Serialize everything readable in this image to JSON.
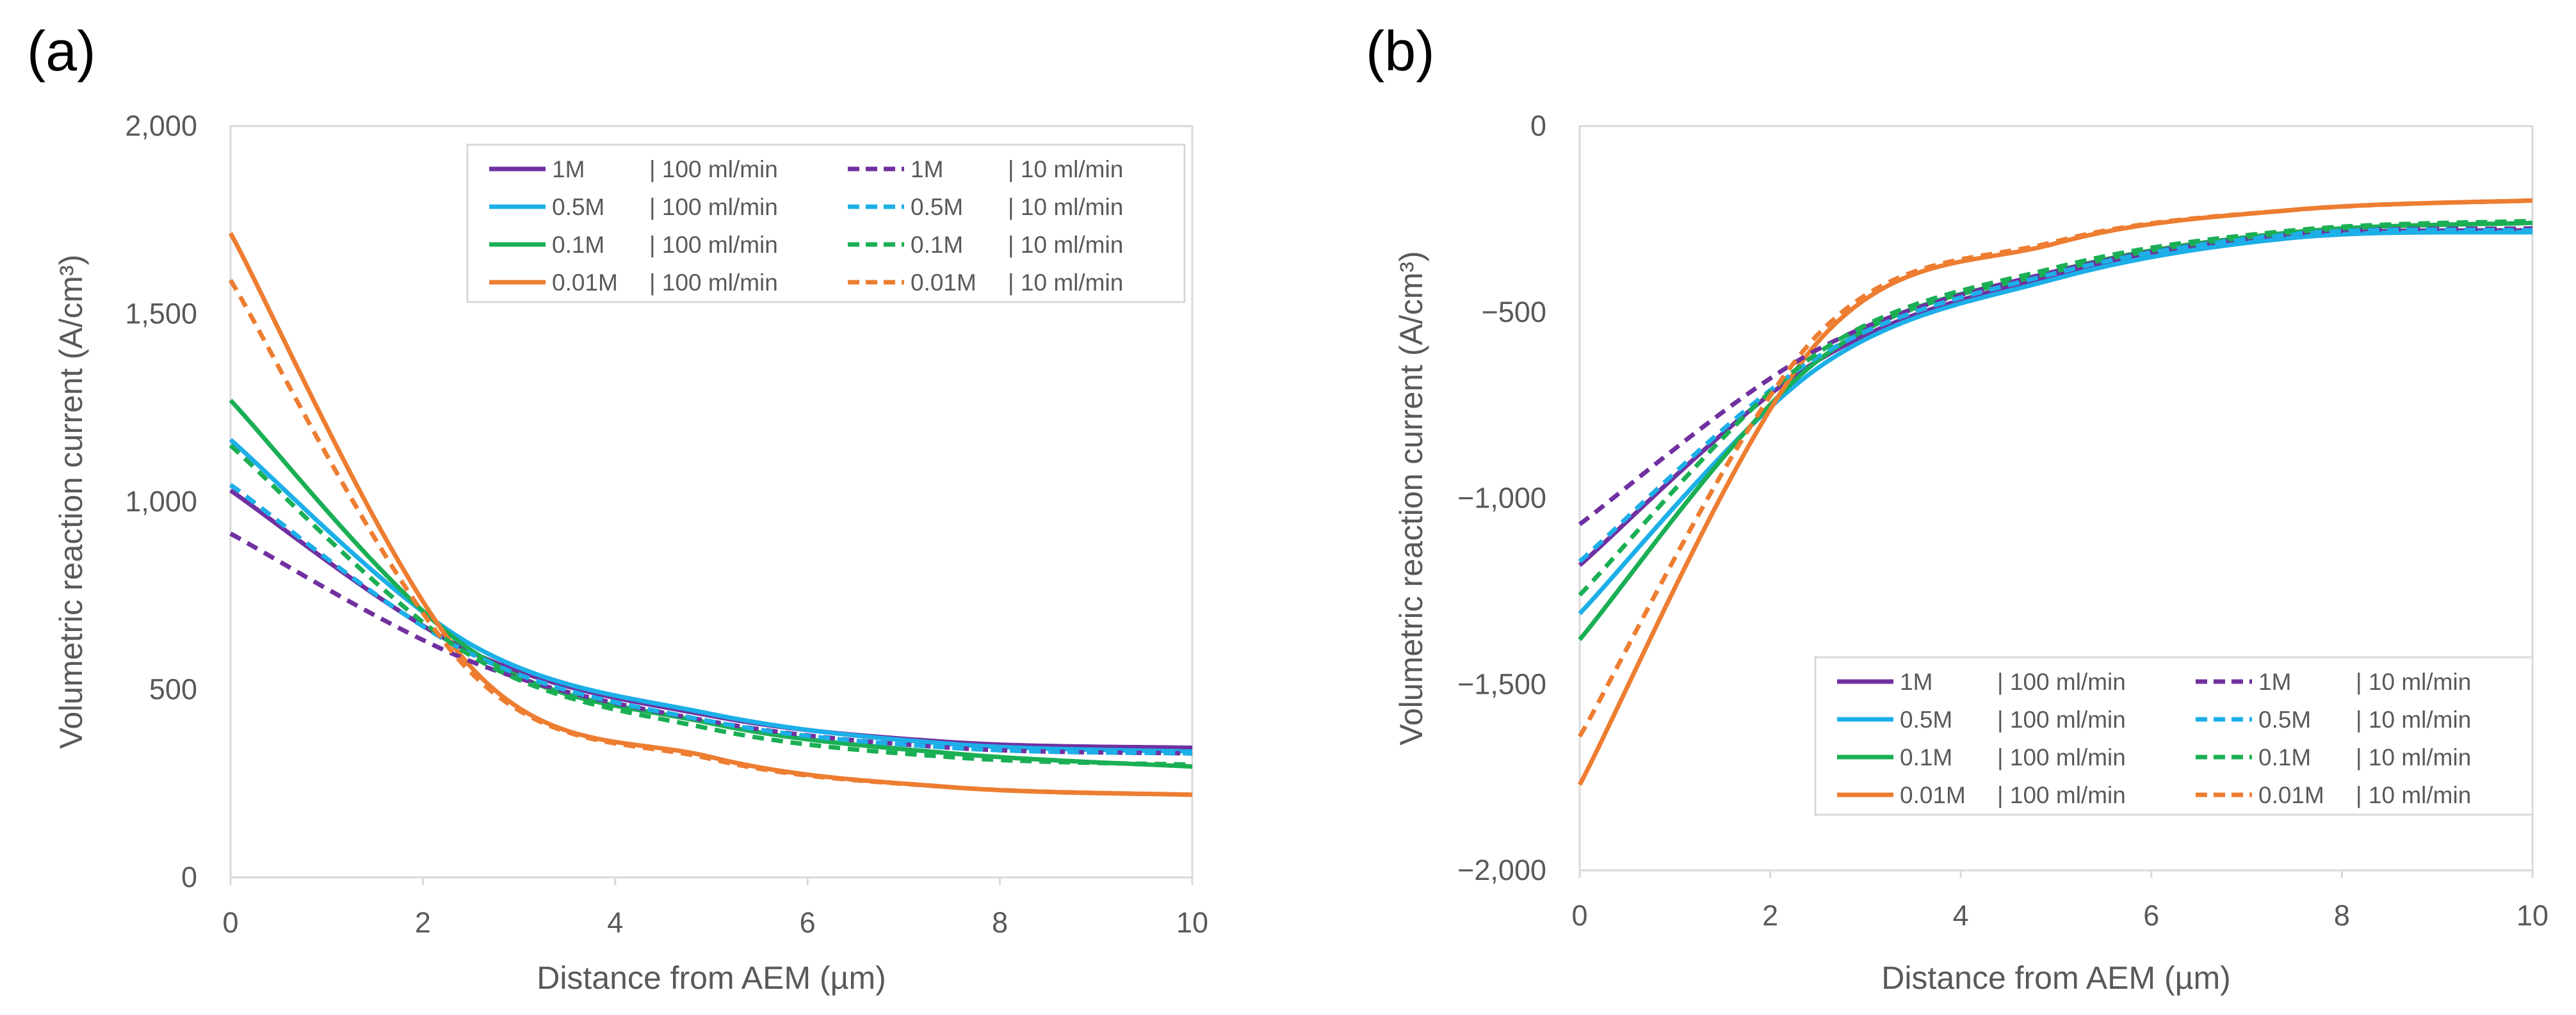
{
  "series_styles": [
    {
      "key": "1M_100",
      "color": "#7030A0",
      "dash": false
    },
    {
      "key": "0.5M_100",
      "color": "#1CAFE8",
      "dash": false
    },
    {
      "key": "0.1M_100",
      "color": "#1AAF54",
      "dash": false
    },
    {
      "key": "0.01M_100",
      "color": "#ED7D31",
      "dash": false
    },
    {
      "key": "1M_10",
      "color": "#7030A0",
      "dash": true
    },
    {
      "key": "0.5M_10",
      "color": "#1CAFE8",
      "dash": true
    },
    {
      "key": "0.1M_10",
      "color": "#1AAF54",
      "dash": true
    },
    {
      "key": "0.01M_10",
      "color": "#ED7D31",
      "dash": true
    }
  ],
  "chart_data": [
    {
      "panel_label": "(a)",
      "type": "line",
      "xlabel": "Distance from AEM (µm)",
      "ylabel": "Volumetric reaction current (A/cm³)",
      "xlim": [
        0,
        10
      ],
      "ylim": [
        0,
        2000
      ],
      "x_ticks": [
        "0",
        "2",
        "4",
        "6",
        "8",
        "10"
      ],
      "y_ticks": [
        "0",
        "500",
        "1,000",
        "1,500",
        "2,000"
      ],
      "grid": false,
      "legend_position": "top-right",
      "x": [
        0,
        2.5,
        5,
        7.5,
        10
      ],
      "series": [
        {
          "name": "1M",
          "rate": "| 100 ml/min",
          "values": [
            1030,
            600,
            430,
            360,
            345
          ]
        },
        {
          "name": "0.5M",
          "rate": "| 100 ml/min",
          "values": [
            1165,
            620,
            435,
            355,
            335
          ]
        },
        {
          "name": "0.1M",
          "rate": "| 100 ml/min",
          "values": [
            1270,
            605,
            410,
            330,
            295
          ]
        },
        {
          "name": "0.01M",
          "rate": "| 100 ml/min",
          "values": [
            1715,
            560,
            320,
            240,
            220
          ]
        },
        {
          "name": "1M",
          "rate": "| 10 ml/min",
          "values": [
            915,
            575,
            415,
            345,
            330
          ]
        },
        {
          "name": "0.5M",
          "rate": "| 10 ml/min",
          "values": [
            1045,
            595,
            415,
            345,
            330
          ]
        },
        {
          "name": "0.1M",
          "rate": "| 10 ml/min",
          "values": [
            1150,
            590,
            395,
            320,
            300
          ]
        },
        {
          "name": "0.01M",
          "rate": "| 10 ml/min",
          "values": [
            1590,
            545,
            315,
            240,
            220
          ]
        }
      ]
    },
    {
      "panel_label": "(b)",
      "type": "line",
      "xlabel": "Distance from AEM (µm)",
      "ylabel": "Volumetric reaction current (A/cm³)",
      "xlim": [
        0,
        10
      ],
      "ylim": [
        -2000,
        0
      ],
      "x_ticks": [
        "0",
        "2",
        "4",
        "6",
        "8",
        "10"
      ],
      "y_ticks": [
        "−2,000",
        "−1,500",
        "−1,000",
        "−500",
        "0"
      ],
      "grid": false,
      "legend_position": "bottom-right",
      "x": [
        0,
        2.5,
        5,
        7.5,
        10
      ],
      "series": [
        {
          "name": "1M",
          "rate": "| 100 ml/min",
          "values": [
            -1180,
            -630,
            -400,
            -295,
            -280
          ]
        },
        {
          "name": "0.5M",
          "rate": "| 100 ml/min",
          "values": [
            -1310,
            -650,
            -410,
            -300,
            -285
          ]
        },
        {
          "name": "0.1M",
          "rate": "| 100 ml/min",
          "values": [
            -1380,
            -630,
            -390,
            -285,
            -260
          ]
        },
        {
          "name": "0.01M",
          "rate": "| 100 ml/min",
          "values": [
            -1770,
            -580,
            -315,
            -225,
            -200
          ]
        },
        {
          "name": "1M",
          "rate": "| 10 ml/min",
          "values": [
            -1070,
            -600,
            -390,
            -290,
            -275
          ]
        },
        {
          "name": "0.5M",
          "rate": "| 10 ml/min",
          "values": [
            -1170,
            -620,
            -395,
            -290,
            -280
          ]
        },
        {
          "name": "0.1M",
          "rate": "| 10 ml/min",
          "values": [
            -1260,
            -610,
            -380,
            -280,
            -255
          ]
        },
        {
          "name": "0.01M",
          "rate": "| 10 ml/min",
          "values": [
            -1640,
            -560,
            -310,
            -225,
            -200
          ]
        }
      ]
    }
  ]
}
